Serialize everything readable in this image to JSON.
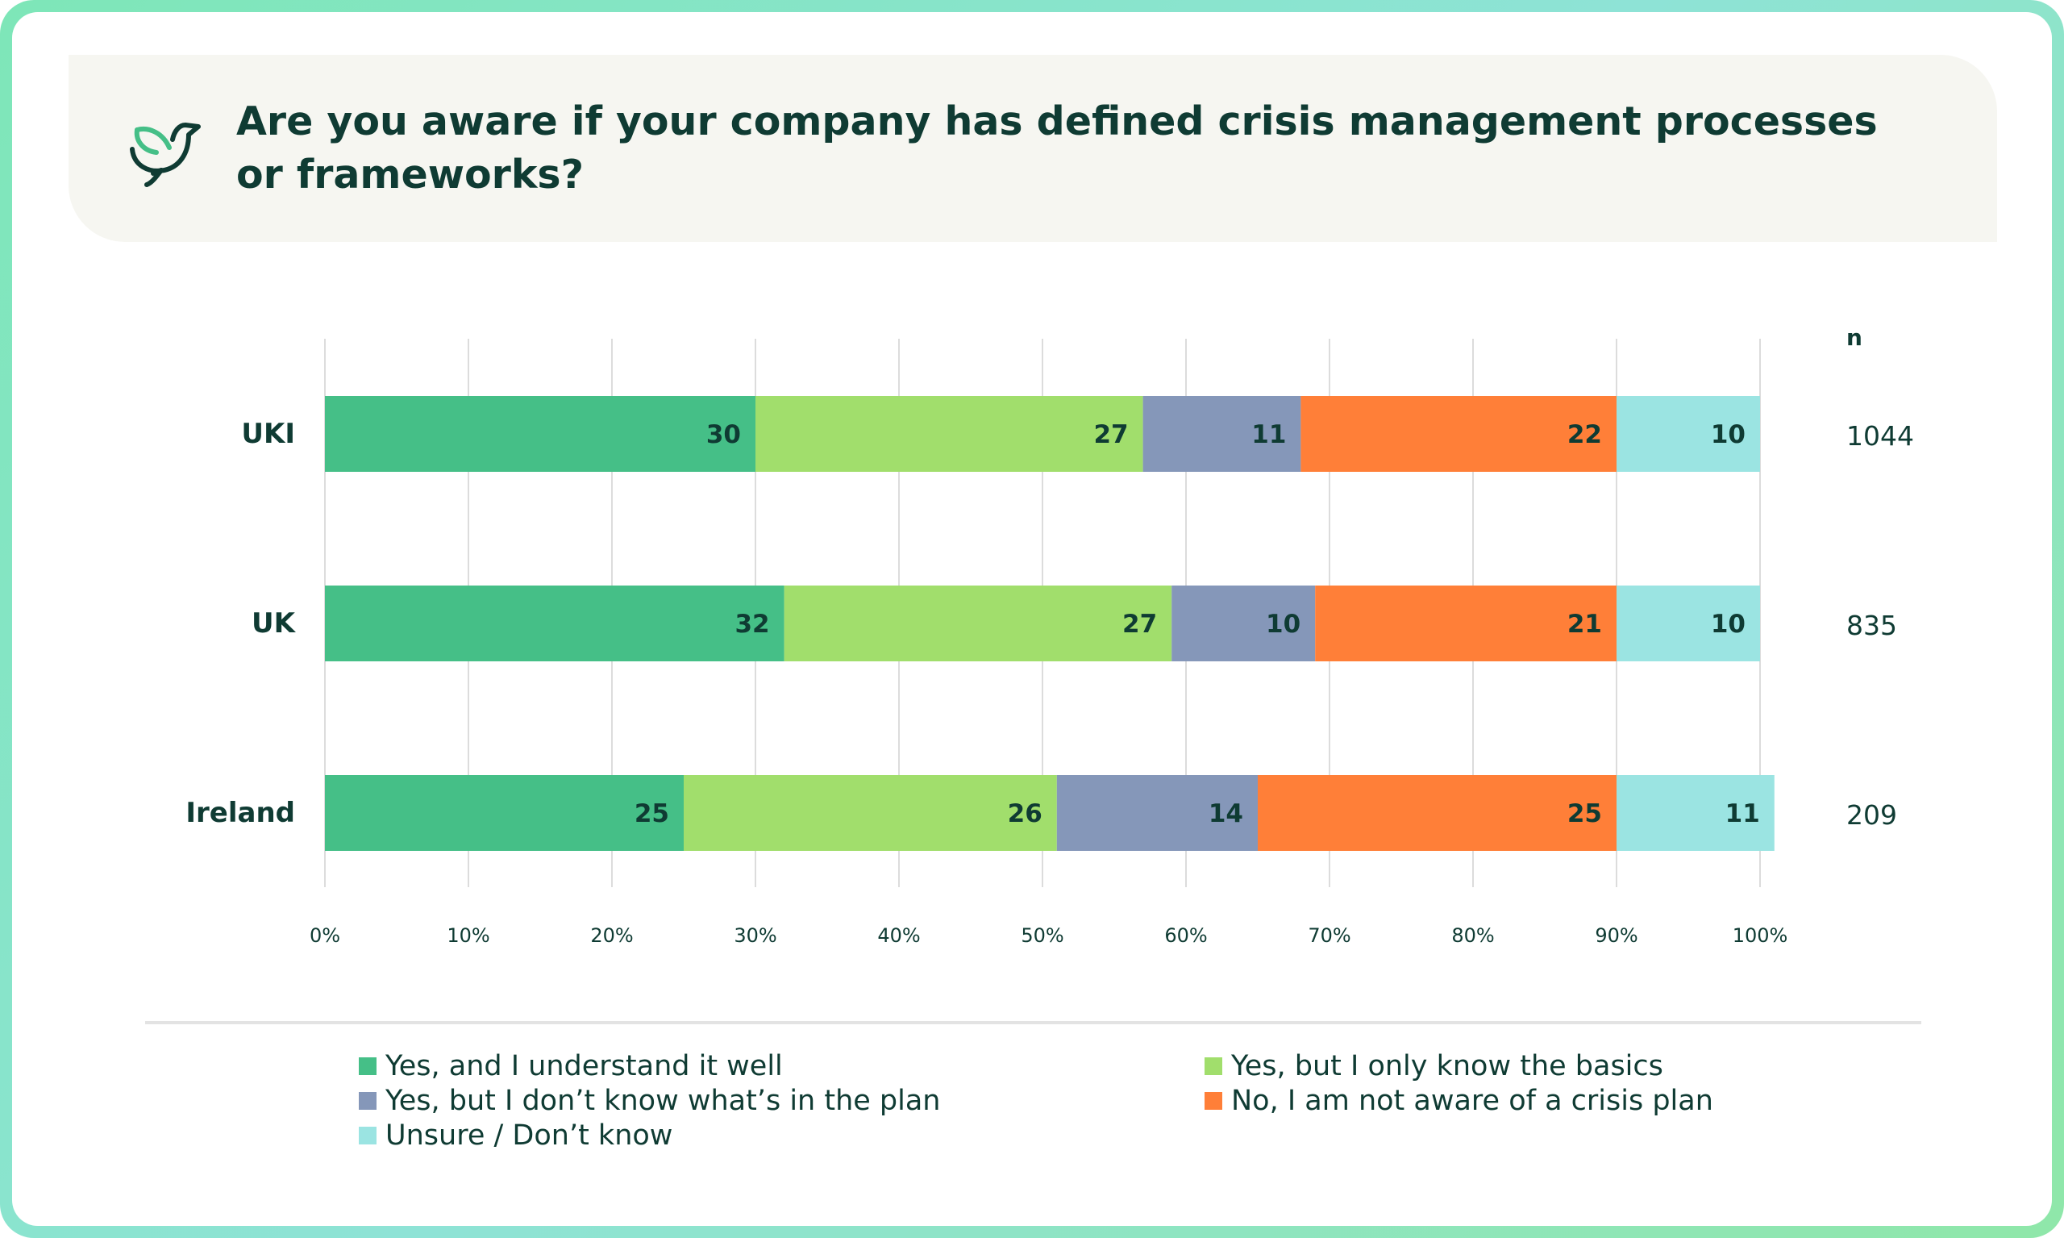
{
  "header": {
    "title": "Are you aware if your company has defined crisis management processes or frameworks?",
    "icon": "dove-icon"
  },
  "chart_data": {
    "type": "bar",
    "orientation": "horizontal",
    "stacked": true,
    "title": "Are you aware if your company has defined crisis management processes or frameworks?",
    "categories": [
      "UKI",
      "UK",
      "Ireland"
    ],
    "series": [
      {
        "name": "Yes, and I understand it well",
        "color": "#45bf87",
        "values": [
          30,
          32,
          25
        ]
      },
      {
        "name": "Yes, but I only know the basics",
        "color": "#a1de6c",
        "values": [
          27,
          27,
          26
        ]
      },
      {
        "name": "Yes, but I don’t know what’s in the plan",
        "color": "#8597b9",
        "values": [
          11,
          10,
          14
        ]
      },
      {
        "name": "No, I am not aware of a crisis plan",
        "color": "#ff7f38",
        "values": [
          22,
          21,
          25
        ]
      },
      {
        "name": "Unsure / Don’t know",
        "color": "#9be4e2",
        "values": [
          10,
          10,
          11
        ]
      }
    ],
    "n_header": "n",
    "n_values": [
      "1044",
      "835",
      "209"
    ],
    "x_ticks": [
      "0%",
      "10%",
      "20%",
      "30%",
      "40%",
      "50%",
      "60%",
      "70%",
      "80%",
      "90%",
      "100%"
    ],
    "xlim": [
      0,
      100
    ],
    "grid": true,
    "legend_position": "bottom"
  }
}
